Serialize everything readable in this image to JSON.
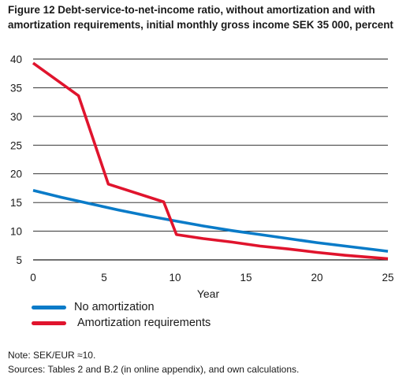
{
  "title": {
    "line1": "Figure 12 Debt-service-to-net-income ratio, without amortization and with",
    "line2": "amortization requirements, initial monthly gross income SEK 35 000, percent"
  },
  "notes": {
    "note": "Note: SEK/EUR ≈10.",
    "sources": "Sources: Tables 2 and B.2 (in online appendix), and own calculations."
  },
  "colors": {
    "no_amortization": "#0a7bc8",
    "amortization": "#e0142d",
    "grid": "#1a1a1a"
  },
  "chart_data": {
    "type": "line",
    "title": "Figure 12 Debt-service-to-net-income ratio, without amortization and with amortization requirements, initial monthly gross income SEK 35 000, percent",
    "xlabel": "Year",
    "ylabel": "",
    "xlim": [
      0,
      25
    ],
    "ylim": [
      5,
      40
    ],
    "xticks": [
      0,
      5,
      10,
      15,
      20,
      25
    ],
    "yticks": [
      5,
      10,
      15,
      20,
      25,
      30,
      35,
      40
    ],
    "grid": "horizontal",
    "legend_position": "bottom-left",
    "series": [
      {
        "name": "No amortization",
        "color": "#0a7bc8",
        "points": [
          [
            0,
            17.1
          ],
          [
            2,
            15.9
          ],
          [
            4,
            14.8
          ],
          [
            6,
            13.7
          ],
          [
            8,
            12.7
          ],
          [
            10,
            11.8
          ],
          [
            12,
            10.9
          ],
          [
            14,
            10.1
          ],
          [
            16,
            9.4
          ],
          [
            18,
            8.7
          ],
          [
            20,
            8.0
          ],
          [
            22,
            7.4
          ],
          [
            24,
            6.8
          ],
          [
            25,
            6.5
          ]
        ]
      },
      {
        "name": "Amortization requirements",
        "color": "#e0142d",
        "points": [
          [
            0,
            39.3
          ],
          [
            3.2,
            33.6
          ],
          [
            5.3,
            18.2
          ],
          [
            9.2,
            15.1
          ],
          [
            10.1,
            9.4
          ],
          [
            12,
            8.7
          ],
          [
            14,
            8.1
          ],
          [
            16,
            7.4
          ],
          [
            18,
            6.9
          ],
          [
            20,
            6.3
          ],
          [
            22,
            5.8
          ],
          [
            24,
            5.4
          ],
          [
            25,
            5.2
          ]
        ]
      }
    ]
  }
}
